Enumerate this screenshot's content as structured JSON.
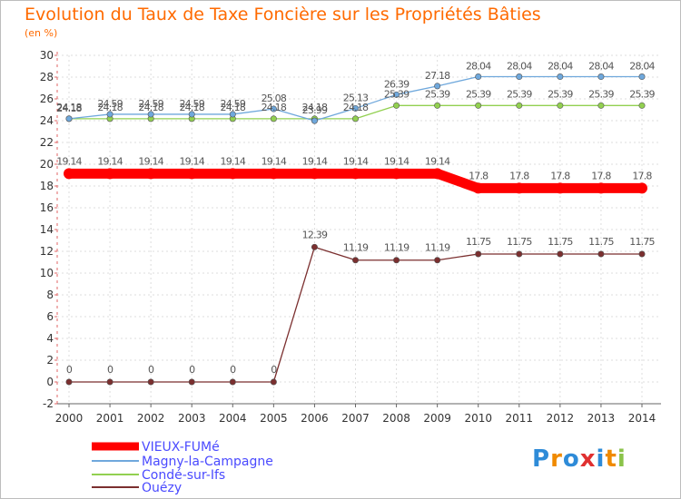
{
  "chart_data": {
    "type": "line",
    "title": "Evolution du Taux de Taxe Foncière sur les Propriétés Bâties",
    "ylabel": "(en %)",
    "ylim": [
      -2,
      30
    ],
    "yticks": [
      -2,
      0,
      2,
      4,
      6,
      8,
      10,
      12,
      14,
      16,
      18,
      20,
      22,
      24,
      26,
      28,
      30
    ],
    "x": [
      "2000",
      "2001",
      "2002",
      "2003",
      "2004",
      "2005",
      "2006",
      "2007",
      "2008",
      "2009",
      "2010",
      "2011",
      "2012",
      "2013",
      "2014"
    ],
    "series": [
      {
        "name": "VIEUX-FUMé",
        "color": "#ff0000",
        "values": [
          19.14,
          19.14,
          19.14,
          19.14,
          19.14,
          19.14,
          19.14,
          19.14,
          19.14,
          19.14,
          17.8,
          17.8,
          17.8,
          17.8,
          17.8
        ],
        "labels": [
          "19.14",
          "19.14",
          "19.14",
          "19.14",
          "19.14",
          "19.14",
          "19.14",
          "19.14",
          "19.14",
          "19.14",
          "17.8",
          "17.8",
          "17.8",
          "17.8",
          "17.8"
        ]
      },
      {
        "name": "Magny-la-Campagne",
        "color": "#6fa8dc",
        "values": [
          24.18,
          24.59,
          24.59,
          24.59,
          24.59,
          25.08,
          23.99,
          25.13,
          26.39,
          27.18,
          28.04,
          28.04,
          28.04,
          28.04,
          28.04
        ],
        "labels": [
          "24.18",
          "24.59",
          "24.59",
          "24.59",
          "24.59",
          "25.08",
          "23.99",
          "25.13",
          "26.39",
          "27.18",
          "28.04",
          "28.04",
          "28.04",
          "28.04",
          "28.04"
        ]
      },
      {
        "name": "Condé-sur-Ifs",
        "color": "#92d050",
        "values": [
          24.18,
          24.18,
          24.18,
          24.18,
          24.18,
          24.18,
          24.18,
          24.18,
          25.39,
          25.39,
          25.39,
          25.39,
          25.39,
          25.39,
          25.39
        ],
        "labels": [
          "24.18",
          "24.18",
          "24.18",
          "24.18",
          "24.18",
          "24.18",
          "24.18",
          "24.18",
          "25.39",
          "25.39",
          "25.39",
          "25.39",
          "25.39",
          "25.39",
          "25.39"
        ]
      },
      {
        "name": "Ouézy",
        "color": "#7b2f2f",
        "values": [
          0,
          0,
          0,
          0,
          0,
          0,
          12.39,
          11.19,
          11.19,
          11.19,
          11.75,
          11.75,
          11.75,
          11.75,
          11.75
        ],
        "labels": [
          "0",
          "0",
          "0",
          "0",
          "0",
          "0",
          "12.39",
          "11.19",
          "11.19",
          "11.19",
          "11.75",
          "11.75",
          "11.75",
          "11.75",
          "11.75"
        ]
      }
    ]
  },
  "logo": {
    "letters": [
      "P",
      "r",
      "o",
      "x",
      "i",
      "t",
      "i"
    ],
    "colors": [
      "#2e8bd8",
      "#f08a00",
      "#2e8bd8",
      "#e03030",
      "#2e8bd8",
      "#f08a00",
      "#8bc34a"
    ]
  }
}
